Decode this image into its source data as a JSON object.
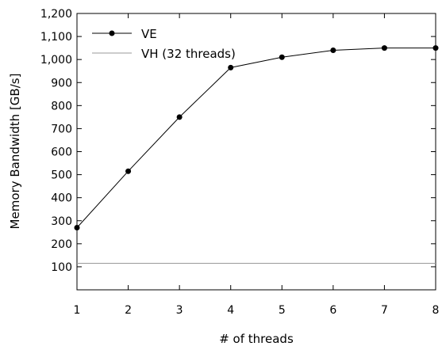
{
  "chart_data": {
    "type": "line",
    "title": "",
    "xlabel": "# of threads",
    "ylabel": "Memory Bandwidth [GB/s]",
    "x": [
      1,
      2,
      3,
      4,
      5,
      6,
      7,
      8
    ],
    "xlim": [
      1,
      8
    ],
    "ylim": [
      0,
      1200
    ],
    "xticks": [
      "1",
      "2",
      "3",
      "4",
      "5",
      "6",
      "7",
      "8"
    ],
    "yticks": [
      "100",
      "200",
      "300",
      "400",
      "500",
      "600",
      "700",
      "800",
      "900",
      "1,000",
      "1,100",
      "1,200"
    ],
    "grid": false,
    "legend_position": "top-left",
    "series": [
      {
        "name": "VE",
        "values": [
          270,
          515,
          750,
          965,
          1010,
          1040,
          1050,
          1050
        ],
        "color": "#000000",
        "marker": "circle"
      },
      {
        "name": "VH (32 threads)",
        "values": [
          115,
          115,
          115,
          115,
          115,
          115,
          115,
          115
        ],
        "color": "#999999",
        "marker": "none"
      }
    ]
  }
}
